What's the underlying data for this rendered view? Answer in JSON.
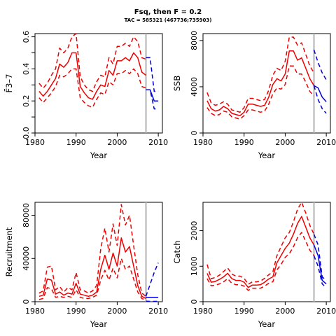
{
  "header": {
    "title": "Fsq, then F = 0.2",
    "subtitle": "TAC = 585321 (467736;735903)"
  },
  "colors": {
    "hist": "#ee0000",
    "proj": "#0000dd",
    "vline": "#b3b3b3"
  },
  "chart_data": [
    {
      "id": "fbar",
      "type": "line",
      "xlabel": "Year",
      "ylabel": "F̄3–7",
      "xlim": [
        1980,
        2011
      ],
      "ylim": [
        0,
        0.62
      ],
      "xticks": [
        1980,
        1990,
        2000,
        2010
      ],
      "yticks": [
        0.0,
        0.1,
        0.2,
        0.3,
        0.4,
        0.5,
        0.6
      ],
      "ytick_labels": [
        "0.0",
        "",
        "0.2",
        "",
        "0.4",
        "",
        "0.6"
      ],
      "vline_x": 2007,
      "historic": {
        "years": [
          1981,
          1982,
          1983,
          1984,
          1985,
          1986,
          1987,
          1988,
          1989,
          1990,
          1991,
          1992,
          1993,
          1994,
          1995,
          1996,
          1997,
          1998,
          1999,
          2000,
          2001,
          2002,
          2003,
          2004,
          2005,
          2006,
          2007
        ],
        "median": [
          0.26,
          0.23,
          0.26,
          0.3,
          0.34,
          0.43,
          0.41,
          0.44,
          0.5,
          0.5,
          0.29,
          0.25,
          0.22,
          0.21,
          0.26,
          0.3,
          0.29,
          0.39,
          0.36,
          0.45,
          0.45,
          0.47,
          0.45,
          0.5,
          0.47,
          0.38,
          0.36
        ],
        "lower": [
          0.22,
          0.19,
          0.22,
          0.25,
          0.29,
          0.36,
          0.35,
          0.37,
          0.4,
          0.4,
          0.22,
          0.19,
          0.17,
          0.16,
          0.21,
          0.25,
          0.24,
          0.32,
          0.3,
          0.37,
          0.37,
          0.39,
          0.37,
          0.4,
          0.37,
          0.29,
          0.28
        ],
        "upper": [
          0.31,
          0.28,
          0.31,
          0.36,
          0.4,
          0.53,
          0.5,
          0.53,
          0.6,
          0.62,
          0.35,
          0.3,
          0.27,
          0.26,
          0.32,
          0.36,
          0.35,
          0.47,
          0.43,
          0.54,
          0.54,
          0.56,
          0.54,
          0.6,
          0.57,
          0.47,
          0.46
        ]
      },
      "projection": {
        "years": [
          2007,
          2008,
          2009,
          2010
        ],
        "median": [
          0.27,
          0.27,
          0.2,
          0.2
        ],
        "lower": [
          0.27,
          0.27,
          0.15,
          0.15
        ],
        "upper": [
          0.47,
          0.47,
          0.26,
          0.26
        ]
      }
    },
    {
      "id": "ssb",
      "type": "line",
      "xlabel": "Year",
      "ylabel": "SSB",
      "xlim": [
        1980,
        2011
      ],
      "ylim": [
        0,
        8600
      ],
      "xticks": [
        1980,
        1990,
        2000,
        2010
      ],
      "yticks": [
        0,
        4000,
        8000
      ],
      "ytick_labels": [
        "0",
        "4000",
        "8000"
      ],
      "vline_x": 2007,
      "historic": {
        "years": [
          1981,
          1982,
          1983,
          1984,
          1985,
          1986,
          1987,
          1988,
          1989,
          1990,
          1991,
          1992,
          1993,
          1994,
          1995,
          1996,
          1997,
          1998,
          1999,
          2000,
          2001,
          2002,
          2003,
          2004,
          2005,
          2006,
          2007
        ],
        "median": [
          2800,
          2100,
          1900,
          2000,
          2300,
          2100,
          1700,
          1600,
          1500,
          1800,
          2500,
          2500,
          2400,
          2300,
          2400,
          3100,
          4200,
          4700,
          4500,
          5100,
          7100,
          7100,
          6300,
          6500,
          5600,
          4700,
          4100
        ],
        "lower": [
          2200,
          1700,
          1500,
          1600,
          1900,
          1800,
          1400,
          1300,
          1200,
          1500,
          2000,
          2000,
          1900,
          1800,
          1900,
          2500,
          3400,
          3900,
          3800,
          4200,
          5800,
          5800,
          5100,
          5100,
          4400,
          3600,
          3200
        ],
        "upper": [
          3500,
          2600,
          2400,
          2500,
          2700,
          2500,
          2000,
          1900,
          1800,
          2200,
          3000,
          3000,
          2900,
          2800,
          2900,
          3700,
          5000,
          5600,
          5400,
          6200,
          8300,
          8300,
          7600,
          7800,
          6800,
          5800,
          5200
        ]
      },
      "projection": {
        "years": [
          2007,
          2008,
          2009,
          2010
        ],
        "median": [
          4100,
          3900,
          3100,
          2700
        ],
        "lower": [
          4100,
          2900,
          2100,
          1700
        ],
        "upper": [
          7200,
          6100,
          5200,
          4600
        ]
      }
    },
    {
      "id": "recruitment",
      "type": "line",
      "xlabel": "Year",
      "ylabel": "Recruitment",
      "xlim": [
        1980,
        2011
      ],
      "ylim": [
        0,
        92000
      ],
      "xticks": [
        1980,
        1990,
        2000,
        2010
      ],
      "yticks": [
        0,
        40000,
        80000
      ],
      "ytick_labels": [
        "0",
        "40000",
        "80000"
      ],
      "vline_x": 2007,
      "historic": {
        "years": [
          1981,
          1982,
          1983,
          1984,
          1985,
          1986,
          1987,
          1988,
          1989,
          1990,
          1991,
          1992,
          1993,
          1994,
          1995,
          1996,
          1997,
          1998,
          1999,
          2000,
          2001,
          2002,
          2003,
          2004,
          2005,
          2006,
          2007
        ],
        "median": [
          5000,
          6000,
          21000,
          20000,
          7000,
          9000,
          6000,
          8000,
          7000,
          17000,
          7000,
          6000,
          5000,
          6000,
          9000,
          30000,
          43000,
          30000,
          45000,
          33000,
          59000,
          46000,
          51000,
          33000,
          15000,
          5000,
          3000
        ],
        "lower": [
          2000,
          3000,
          13000,
          12000,
          4000,
          5000,
          4000,
          5000,
          4000,
          11000,
          4000,
          3000,
          3000,
          4000,
          6000,
          20000,
          29000,
          20000,
          31000,
          22000,
          40000,
          30000,
          33000,
          21000,
          9000,
          3000,
          1500
        ],
        "upper": [
          8000,
          10000,
          32000,
          33000,
          11000,
          14000,
          9000,
          13000,
          11000,
          27000,
          11000,
          10000,
          8000,
          10000,
          15000,
          49000,
          68000,
          46000,
          72000,
          52000,
          90000,
          71000,
          80000,
          52000,
          25000,
          8000,
          5000
        ]
      },
      "projection": {
        "years": [
          2007,
          2008,
          2009,
          2010
        ],
        "median": [
          4000,
          4000,
          4000,
          4000
        ],
        "lower": [
          500,
          300,
          300,
          300
        ],
        "upper": [
          5000,
          16000,
          27000,
          36000
        ]
      }
    },
    {
      "id": "catch",
      "type": "line",
      "xlabel": "Year",
      "ylabel": "Catch",
      "xlim": [
        1980,
        2011
      ],
      "ylim": [
        0,
        2800
      ],
      "xticks": [
        1980,
        1990,
        2000,
        2010
      ],
      "yticks": [
        0,
        1000,
        2000
      ],
      "ytick_labels": [
        "0",
        "1000",
        "2000"
      ],
      "vline_x": 2007,
      "historic": {
        "years": [
          1981,
          1982,
          1983,
          1984,
          1985,
          1986,
          1987,
          1988,
          1989,
          1990,
          1991,
          1992,
          1993,
          1994,
          1995,
          1996,
          1997,
          1998,
          1999,
          2000,
          2001,
          2002,
          2003,
          2004,
          2005,
          2006,
          2007
        ],
        "median": [
          800,
          550,
          570,
          630,
          700,
          800,
          650,
          600,
          600,
          550,
          400,
          470,
          470,
          480,
          550,
          640,
          700,
          1100,
          1300,
          1500,
          1650,
          1900,
          2200,
          2400,
          2100,
          1800,
          1600
        ],
        "lower": [
          650,
          450,
          470,
          500,
          560,
          650,
          520,
          480,
          480,
          440,
          320,
          380,
          380,
          380,
          440,
          520,
          560,
          900,
          1050,
          1250,
          1350,
          1550,
          1800,
          1950,
          1700,
          1450,
          1300
        ],
        "upper": [
          1050,
          650,
          680,
          750,
          850,
          950,
          780,
          720,
          720,
          660,
          490,
          560,
          560,
          580,
          660,
          760,
          840,
          1300,
          1550,
          1800,
          1950,
          2250,
          2600,
          2800,
          2500,
          2150,
          1900
        ]
      },
      "projection": {
        "years": [
          2007,
          2008,
          2009,
          2010
        ],
        "median": [
          1600,
          1300,
          600,
          500
        ],
        "lower": [
          1300,
          1000,
          500,
          400
        ],
        "upper": [
          1900,
          1600,
          700,
          600
        ]
      }
    }
  ]
}
